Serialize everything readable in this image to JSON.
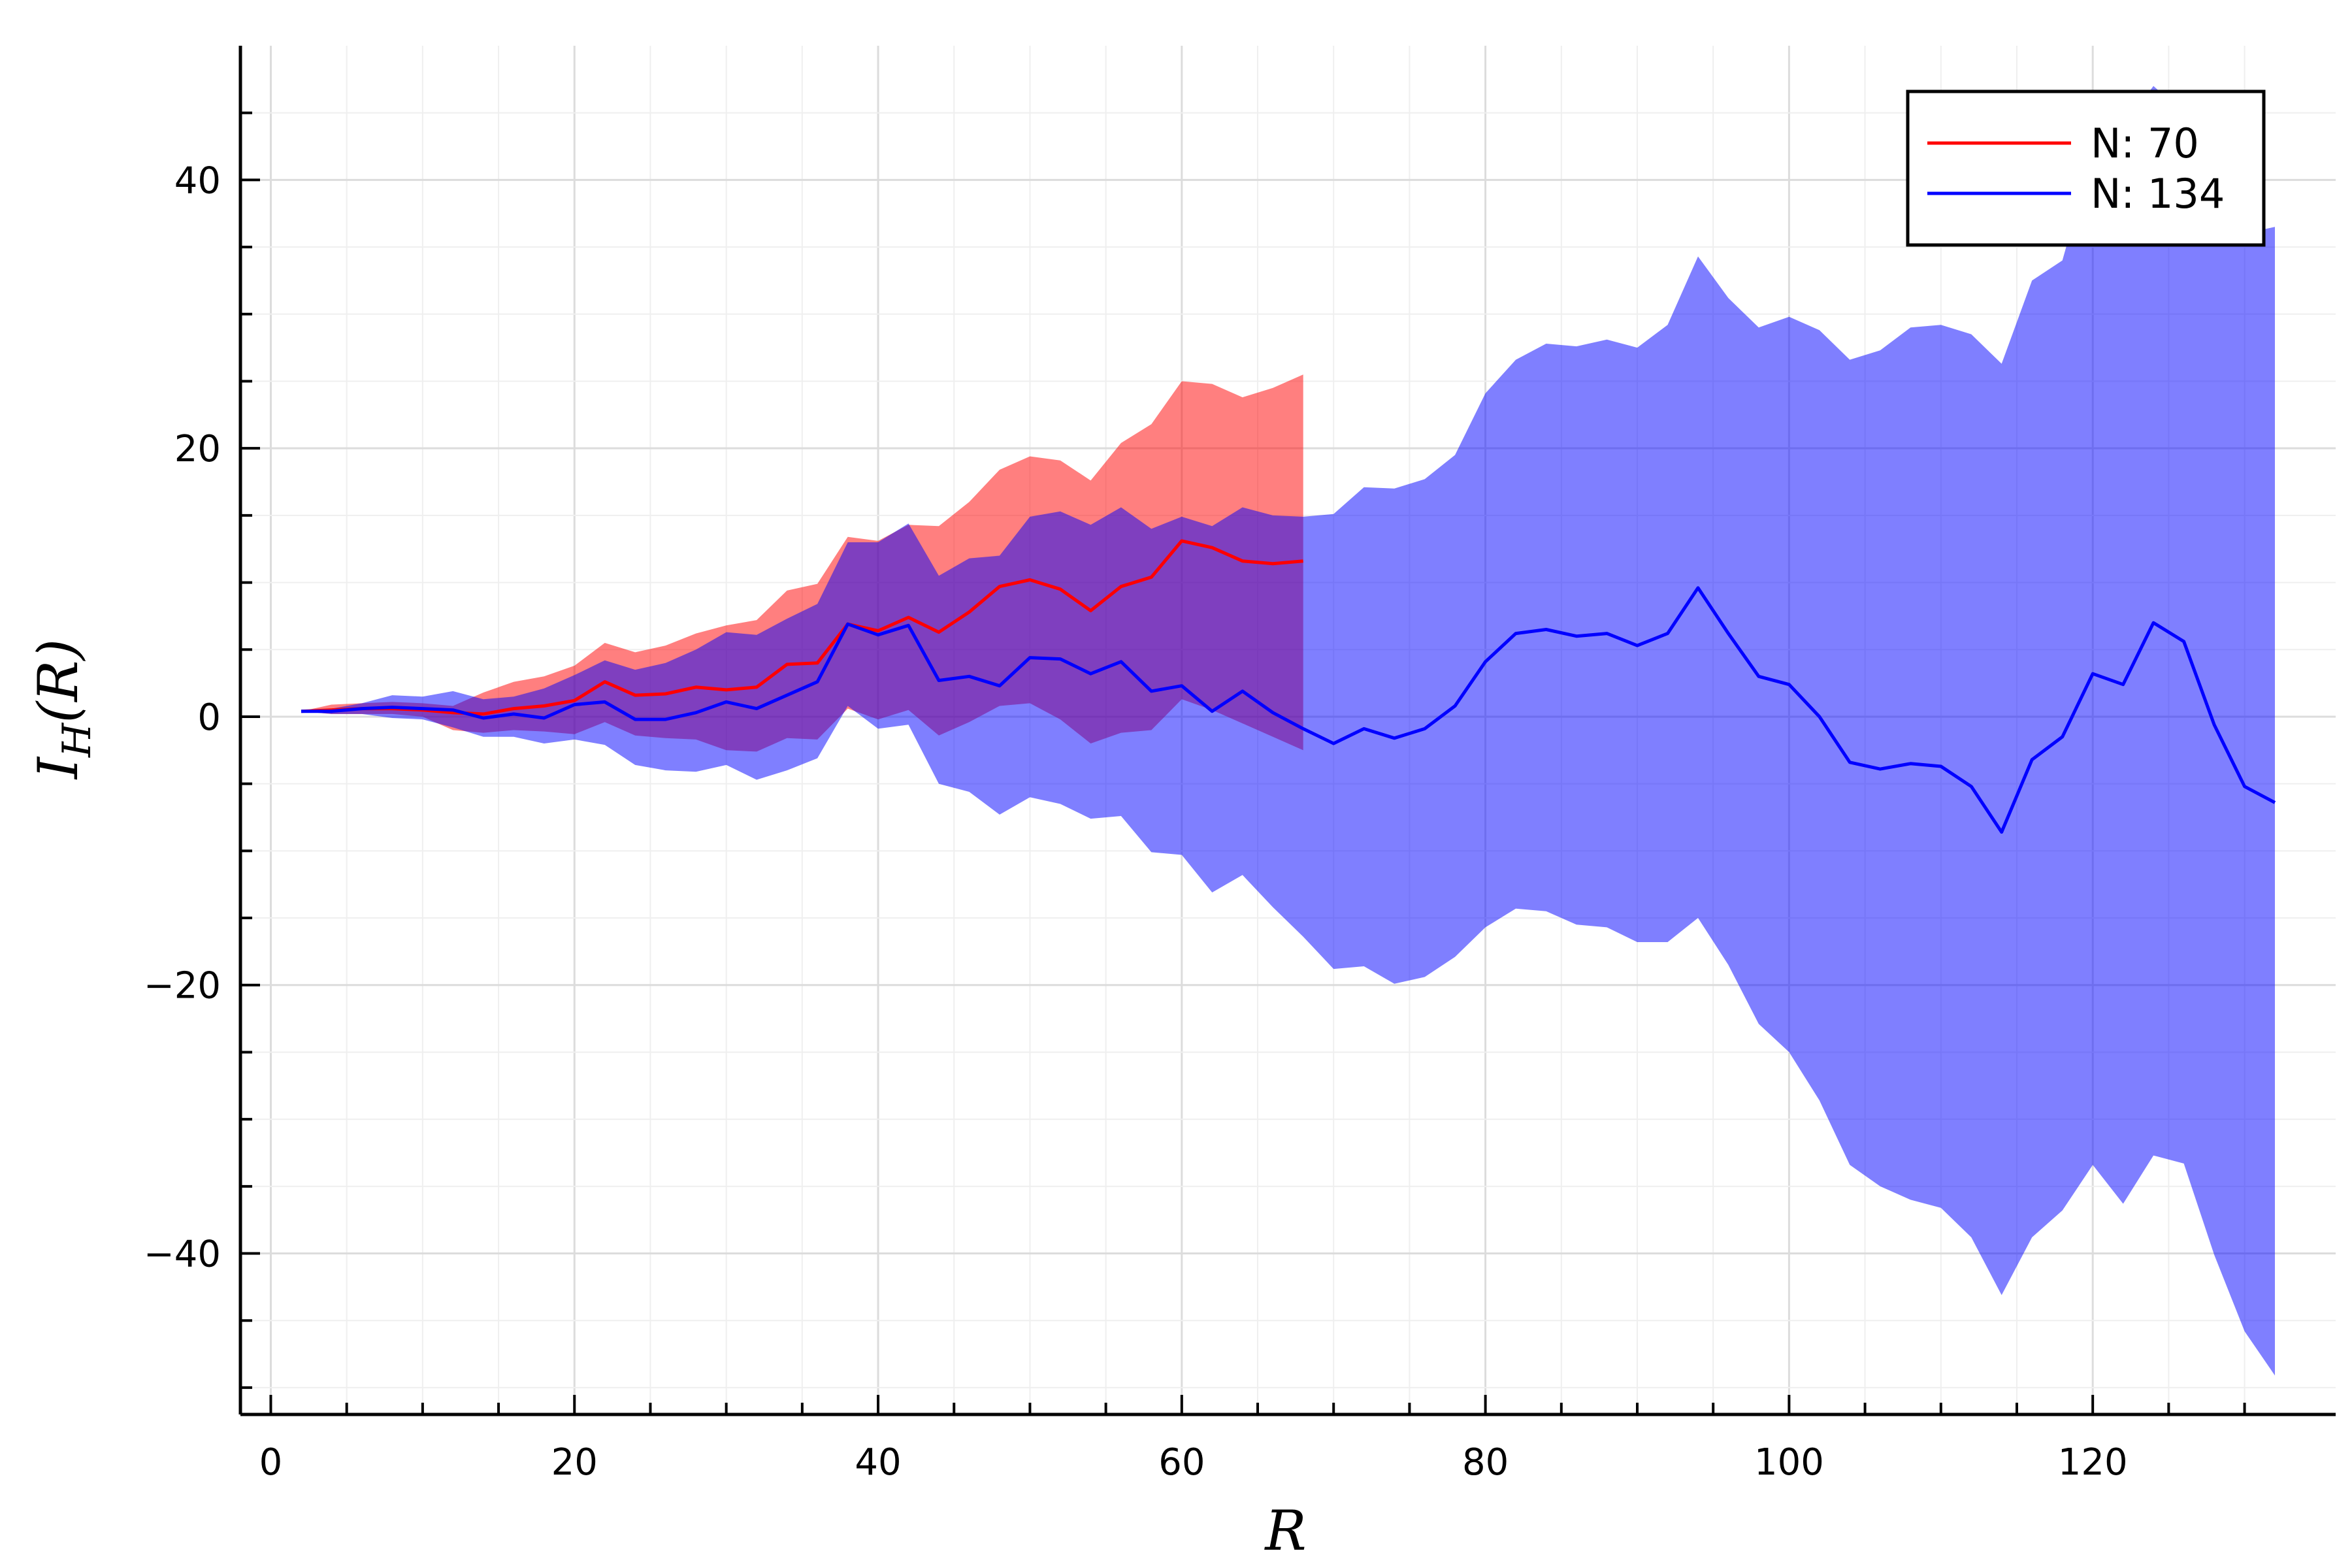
{
  "chart_data": {
    "type": "line",
    "title": "",
    "xlabel": "R",
    "ylabel": "I_H(R)",
    "ylabel_parts": {
      "base": "I",
      "sub": "H",
      "arg": "(R)"
    },
    "xlim": [
      -2,
      136
    ],
    "ylim": [
      -52,
      50
    ],
    "xticks": [
      0,
      20,
      40,
      60,
      80,
      100,
      120
    ],
    "yticks": [
      -40,
      -20,
      0,
      20,
      40
    ],
    "xtick_labels": [
      "0",
      "20",
      "40",
      "60",
      "80",
      "100",
      "120"
    ],
    "ytick_labels": [
      "−40",
      "−20",
      "0",
      "20",
      "40"
    ],
    "grid": true,
    "legend_position": "top-right",
    "series": [
      {
        "name": "N: 70",
        "color": "#ff0000",
        "band_color": "#ff0000",
        "x": [
          2,
          4,
          6,
          8,
          10,
          12,
          14,
          16,
          18,
          20,
          22,
          24,
          26,
          28,
          30,
          32,
          34,
          36,
          38,
          40,
          42,
          44,
          46,
          48,
          50,
          52,
          54,
          56,
          58,
          60,
          62,
          64,
          66,
          68
        ],
        "y": [
          0.4,
          0.5,
          0.6,
          0.6,
          0.5,
          0.3,
          0.2,
          0.6,
          0.8,
          1.2,
          2.6,
          1.6,
          1.7,
          2.2,
          2.0,
          2.2,
          3.9,
          4.0,
          6.9,
          6.4,
          7.4,
          6.3,
          7.8,
          9.7,
          10.2,
          9.5,
          7.9,
          9.7,
          10.4,
          13.1,
          12.6,
          11.6,
          11.4,
          11.6
        ],
        "upper": [
          0.4,
          0.9,
          1.0,
          1.1,
          1.0,
          0.8,
          1.8,
          2.6,
          3.0,
          3.8,
          5.5,
          4.8,
          5.3,
          6.2,
          6.8,
          7.2,
          9.4,
          9.9,
          13.4,
          13.1,
          14.3,
          14.2,
          16.0,
          18.4,
          19.4,
          19.1,
          17.6,
          20.4,
          21.8,
          25.0,
          24.8,
          23.8,
          24.5,
          25.5
        ],
        "lower": [
          0.4,
          0.2,
          0.2,
          0.2,
          0.0,
          -1.0,
          -1.2,
          -1.0,
          -1.1,
          -1.3,
          -0.4,
          -1.4,
          -1.6,
          -1.7,
          -2.5,
          -2.6,
          -1.6,
          -1.7,
          0.6,
          -0.2,
          0.5,
          -1.4,
          -0.4,
          0.8,
          1.0,
          -0.2,
          -2.0,
          -1.2,
          -1.0,
          1.3,
          0.5,
          -0.5,
          -1.5,
          -2.5
        ]
      },
      {
        "name": "N: 134",
        "color": "#0000ff",
        "band_color": "#0000ff",
        "x": [
          2,
          4,
          6,
          8,
          10,
          12,
          14,
          16,
          18,
          20,
          22,
          24,
          26,
          28,
          30,
          32,
          34,
          36,
          38,
          40,
          42,
          44,
          46,
          48,
          50,
          52,
          54,
          56,
          58,
          60,
          62,
          64,
          66,
          68,
          70,
          72,
          74,
          76,
          78,
          80,
          82,
          84,
          86,
          88,
          90,
          92,
          94,
          96,
          98,
          100,
          102,
          104,
          106,
          108,
          110,
          112,
          114,
          116,
          118,
          120,
          122,
          124,
          126,
          128,
          130,
          132
        ],
        "y": [
          0.4,
          0.4,
          0.6,
          0.7,
          0.6,
          0.5,
          -0.1,
          0.2,
          -0.1,
          0.9,
          1.1,
          -0.2,
          -0.2,
          0.3,
          1.1,
          0.6,
          1.6,
          2.6,
          6.9,
          6.1,
          6.8,
          2.7,
          3.0,
          2.3,
          4.4,
          4.3,
          3.2,
          4.1,
          1.9,
          2.3,
          0.4,
          1.9,
          0.3,
          -0.9,
          -2.0,
          -0.9,
          -1.6,
          -0.9,
          0.8,
          4.1,
          6.2,
          6.5,
          6.0,
          6.2,
          5.3,
          6.2,
          9.6,
          6.2,
          3.0,
          2.4,
          0.0,
          -3.4,
          -3.9,
          -3.5,
          -3.7,
          -5.2,
          -8.6,
          -3.2,
          -1.5,
          3.2,
          2.4,
          7.0,
          5.6,
          -0.6,
          -5.2,
          -6.4
        ],
        "upper": [
          0.4,
          0.6,
          1.0,
          1.6,
          1.5,
          1.9,
          1.3,
          1.5,
          2.1,
          3.1,
          4.2,
          3.5,
          4.0,
          5.0,
          6.3,
          6.1,
          7.3,
          8.4,
          13.0,
          13.0,
          14.4,
          10.5,
          11.8,
          12.0,
          14.9,
          15.3,
          14.3,
          15.6,
          14.0,
          14.9,
          14.2,
          15.6,
          15.0,
          14.9,
          15.1,
          17.1,
          17.0,
          17.7,
          19.5,
          24.1,
          26.6,
          27.8,
          27.6,
          28.1,
          27.5,
          29.2,
          34.3,
          31.2,
          29.0,
          29.8,
          28.8,
          26.6,
          27.3,
          29.0,
          29.2,
          28.5,
          26.3,
          32.5,
          34.0,
          42.0,
          44.0,
          47.0,
          45.0,
          46.0,
          36.0,
          36.5
        ],
        "lower": [
          0.4,
          0.2,
          0.2,
          -0.1,
          -0.2,
          -0.8,
          -1.5,
          -1.5,
          -2.0,
          -1.7,
          -2.1,
          -3.6,
          -4.0,
          -4.1,
          -3.6,
          -4.7,
          -4.0,
          -3.1,
          0.8,
          -0.9,
          -0.6,
          -5.0,
          -5.6,
          -7.3,
          -6.0,
          -6.5,
          -7.6,
          -7.4,
          -10.1,
          -10.3,
          -13.1,
          -11.8,
          -14.2,
          -16.4,
          -18.8,
          -18.6,
          -19.9,
          -19.4,
          -17.9,
          -15.7,
          -14.3,
          -14.5,
          -15.5,
          -15.7,
          -16.8,
          -16.8,
          -15.0,
          -18.5,
          -22.9,
          -25.0,
          -28.6,
          -33.4,
          -35.0,
          -36.0,
          -36.6,
          -38.8,
          -43.1,
          -38.8,
          -36.8,
          -33.4,
          -36.3,
          -32.7,
          -33.3,
          -40.1,
          -45.8,
          -49.1
        ]
      }
    ]
  }
}
